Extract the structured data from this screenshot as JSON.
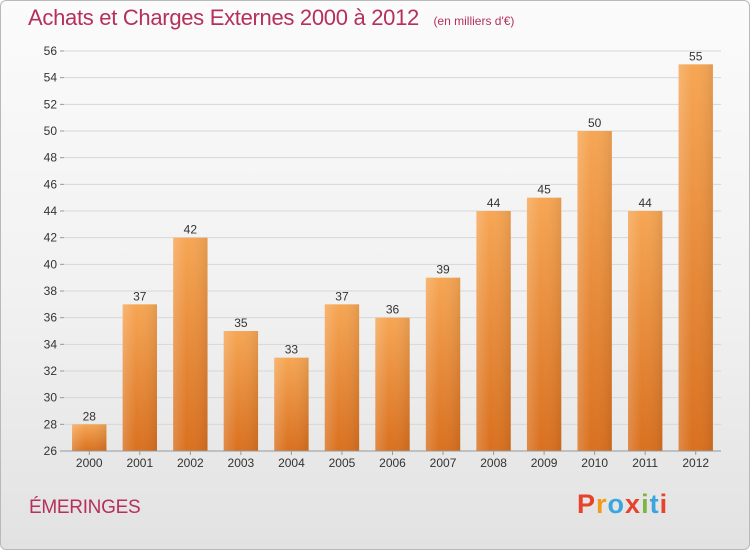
{
  "header": {
    "title": "Achats et Charges Externes 2000 à 2012",
    "unit": "(en milliers d'€)"
  },
  "footer": {
    "place": "ÉMERINGES",
    "logo": "Proxiti",
    "logo_colors": [
      "#e8412c",
      "#f29a1e",
      "#3aa6dd",
      "#e8412c",
      "#7ab642",
      "#3aa6dd",
      "#e8412c"
    ]
  },
  "colors": {
    "bar_top": "#f6a654",
    "bar_bottom": "#d9701f",
    "title": "#b5305a"
  },
  "chart_data": {
    "type": "bar",
    "title": "Achats et Charges Externes 2000 à 2012",
    "subtitle": "(en milliers d'€)",
    "categories": [
      "2000",
      "2001",
      "2002",
      "2003",
      "2004",
      "2005",
      "2006",
      "2007",
      "2008",
      "2009",
      "2010",
      "2011",
      "2012"
    ],
    "values": [
      28,
      37,
      42,
      35,
      33,
      37,
      36,
      39,
      44,
      45,
      50,
      44,
      55
    ],
    "ylim": [
      26,
      56
    ],
    "yticks": [
      26,
      28,
      30,
      32,
      34,
      36,
      38,
      40,
      42,
      44,
      46,
      48,
      50,
      52,
      54,
      56
    ],
    "grid": true,
    "xlabel": "",
    "ylabel": ""
  }
}
